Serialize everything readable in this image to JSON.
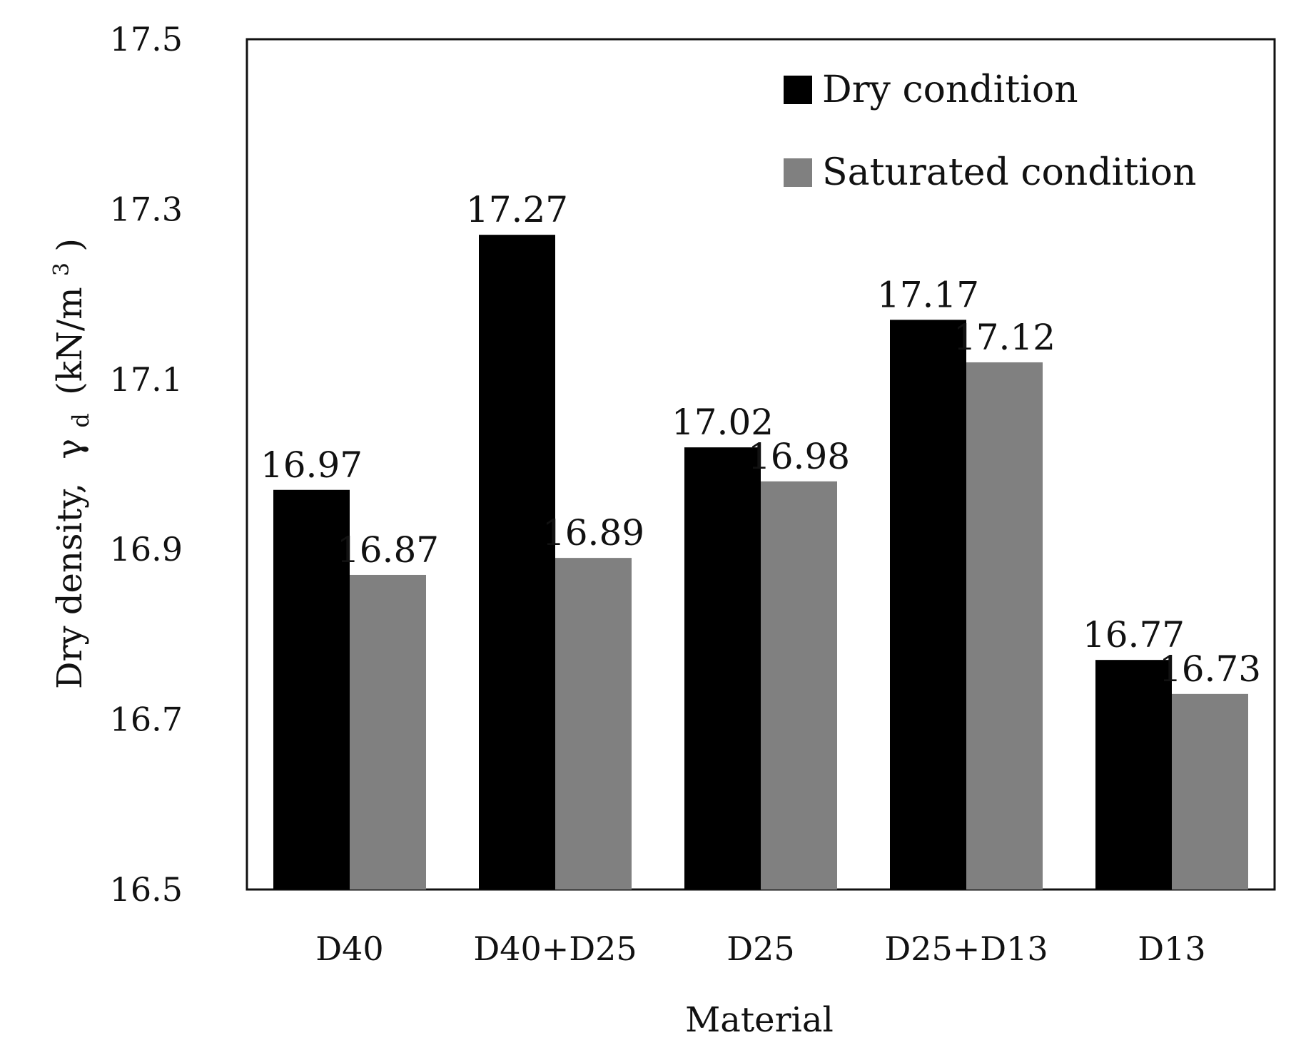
{
  "chart_data": {
    "type": "bar",
    "title": "",
    "xlabel": "Material",
    "ylabel_main": "Dry density,",
    "ylabel_symbol": "γ",
    "ylabel_subscript": "d",
    "ylabel_unit": "(kN/m",
    "ylabel_unit_sup": "3",
    "ylabel_unit_close": ")",
    "ylim": [
      16.5,
      17.5
    ],
    "yticks": [
      "16.5",
      "16.7",
      "16.9",
      "17.1",
      "17.3",
      "17.5"
    ],
    "categories": [
      "D40",
      "D40+D25",
      "D25",
      "D25+D13",
      "D13"
    ],
    "series": [
      {
        "name": "Dry condition",
        "color": "#000000",
        "values": [
          16.97,
          17.27,
          17.02,
          17.17,
          16.77
        ],
        "labels": [
          "16.97",
          "17.27",
          "17.02",
          "17.17",
          "16.77"
        ]
      },
      {
        "name": "Saturated condition",
        "color": "#808080",
        "values": [
          16.87,
          16.89,
          16.98,
          17.12,
          16.73
        ],
        "labels": [
          "16.87",
          "16.89",
          "16.98",
          "17.12",
          "16.73"
        ]
      }
    ],
    "legend_position": "top-right",
    "grid": false
  }
}
